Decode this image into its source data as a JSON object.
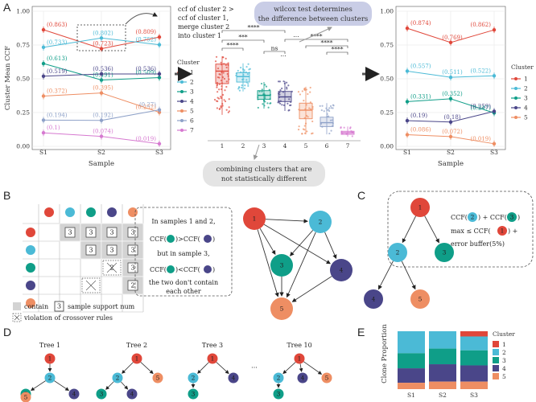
{
  "colors": {
    "c1": "#e0473a",
    "c2": "#4bbad6",
    "c3": "#0f9e88",
    "c4": "#4a4689",
    "c5": "#ee8e63",
    "c6": "#8ea1c8",
    "c7": "#d679d0",
    "grid": "#e6e6e6",
    "gray_cell": "#d3d3d3"
  },
  "panel_letters": {
    "a": "A",
    "b": "B",
    "c": "C",
    "d": "D",
    "e": "E"
  },
  "panelA": {
    "left_plot": {
      "ylabel": "Cluster Mean CCF",
      "xlabel": "Sample",
      "samples": [
        "S1",
        "S2",
        "S3"
      ],
      "yticks": [
        "0.00",
        "0.25",
        "0.50",
        "0.75",
        "1.00"
      ],
      "legend_title": "Cluster",
      "legend_labels": [
        "1",
        "2",
        "3",
        "4",
        "5",
        "6",
        "7"
      ],
      "series": [
        {
          "name": "1",
          "values": [
            0.863,
            0.723,
            0.809
          ],
          "labels": [
            "(0.863)",
            "(0.723)",
            "(0.809)"
          ]
        },
        {
          "name": "2",
          "values": [
            0.733,
            0.802,
            0.752
          ],
          "labels": [
            "(0.733)",
            "(0.802)",
            "(0.752)"
          ]
        },
        {
          "name": "3",
          "values": [
            0.613,
            0.491,
            0.509
          ],
          "labels": [
            "(0.613)",
            "(0.491)",
            "(0.509)"
          ]
        },
        {
          "name": "4",
          "values": [
            0.519,
            0.536,
            0.536
          ],
          "labels": [
            "(0.519)",
            "(0.536)",
            "(0.536)"
          ]
        },
        {
          "name": "5",
          "values": [
            0.372,
            0.395,
            0.252
          ],
          "labels": [
            "(0.372)",
            "(0.395)",
            "(0.252)"
          ]
        },
        {
          "name": "6",
          "values": [
            0.194,
            0.192,
            0.27
          ],
          "labels": [
            "(0.194)",
            "(0.192)",
            "(0.27)"
          ]
        },
        {
          "name": "7",
          "values": [
            0.1,
            0.074,
            0.019
          ],
          "labels": [
            "(0.1)",
            "(0.074)",
            "(0.019)"
          ]
        }
      ],
      "annotation": [
        "ccf of cluster 2 >",
        "ccf of cluster 1,",
        "merge cluster 2",
        "into cluster 1"
      ]
    },
    "box_plot": {
      "categories": [
        "1",
        "2",
        "3",
        "4",
        "5",
        "6",
        "7"
      ],
      "medians": [
        0.86,
        0.79,
        0.55,
        0.53,
        0.36,
        0.2,
        0.07
      ],
      "q1": [
        0.7,
        0.72,
        0.5,
        0.47,
        0.25,
        0.15,
        0.05
      ],
      "q3": [
        0.95,
        0.84,
        0.61,
        0.6,
        0.45,
        0.27,
        0.09
      ],
      "whisker_low": [
        0.3,
        0.6,
        0.38,
        0.35,
        0.05,
        0.05,
        0.02
      ],
      "whisker_high": [
        1.05,
        0.96,
        0.72,
        0.73,
        0.66,
        0.45,
        0.15
      ],
      "significance": [
        "****",
        "***",
        "****",
        "ns",
        "****",
        "****",
        "****",
        "****",
        "***",
        "***",
        "****"
      ],
      "top_note": "wilcox test determines the difference between clusters",
      "bottom_note": "combining clusters that are not statistically different"
    },
    "right_plot": {
      "xlabel": "Sample",
      "samples": [
        "S1",
        "S2",
        "S3"
      ],
      "yticks": [
        "0.00",
        "0.25",
        "0.50",
        "0.75",
        "1.00"
      ],
      "legend_title": "Cluster",
      "legend_labels": [
        "1",
        "2",
        "3",
        "4",
        "5"
      ],
      "series": [
        {
          "name": "1",
          "values": [
            0.874,
            0.769,
            0.862
          ],
          "labels": [
            "(0.874)",
            "(0.769)",
            "(0.862)"
          ]
        },
        {
          "name": "2",
          "values": [
            0.557,
            0.511,
            0.522
          ],
          "labels": [
            "(0.557)",
            "(0.511)",
            "(0.522)"
          ]
        },
        {
          "name": "3",
          "values": [
            0.331,
            0.352,
            0.247
          ],
          "labels": [
            "(0.331)",
            "(0.352)",
            "(0.247)"
          ]
        },
        {
          "name": "4",
          "values": [
            0.19,
            0.18,
            0.259
          ],
          "labels": [
            "(0.19)",
            "(0.18)",
            "(0.259)"
          ]
        },
        {
          "name": "5",
          "values": [
            0.086,
            0.072,
            0.019
          ],
          "labels": [
            "(0.086)",
            "(0.072)",
            "(0.019)"
          ]
        }
      ]
    }
  },
  "panelB": {
    "matrix_numbers": [
      "3",
      "3",
      "3",
      "3",
      "3",
      "3",
      "3",
      "3",
      "2",
      "3",
      "3"
    ],
    "text_lines": [
      "In samples 1 and 2,",
      "CCF(",
      ")>CCF(",
      ")",
      "but in sample 3,",
      "CCF(",
      ")<CCF(",
      ")",
      "the two don't contain",
      "each other"
    ],
    "legend_contain": "contain",
    "legend_num": "3",
    "legend_support": "sample support num",
    "legend_violation": "violation of crossover rules",
    "graph_nodes": [
      "1",
      "2",
      "3",
      "4",
      "5"
    ]
  },
  "panelC": {
    "nodes": [
      "1",
      "2",
      "3",
      "4",
      "5"
    ],
    "formula_line1_parts": [
      "CCF(",
      "2",
      ") + CCF(",
      "3",
      ")"
    ],
    "formula_line2_parts": [
      "max ≤ CCF(",
      "1",
      ") +"
    ],
    "formula_line3": "error buffer(5%)"
  },
  "panelD": {
    "trees": [
      {
        "title": "Tree 1"
      },
      {
        "title": "Tree 2"
      },
      {
        "title": "Tree 3"
      },
      {
        "title": "Tree 10"
      }
    ],
    "ellipsis": "···"
  },
  "panelE": {
    "chart_data": {
      "type": "bar",
      "stacked": true,
      "categories": [
        "S1",
        "S2",
        "S3"
      ],
      "ylabel": "Clone Proportion",
      "legend_title": "Cluster",
      "series": [
        {
          "name": "1",
          "values": [
            0.0,
            0.0,
            0.09
          ]
        },
        {
          "name": "2",
          "values": [
            0.38,
            0.3,
            0.24
          ]
        },
        {
          "name": "3",
          "values": [
            0.26,
            0.27,
            0.26
          ]
        },
        {
          "name": "4",
          "values": [
            0.25,
            0.3,
            0.28
          ]
        },
        {
          "name": "5",
          "values": [
            0.11,
            0.13,
            0.13
          ]
        }
      ]
    }
  }
}
